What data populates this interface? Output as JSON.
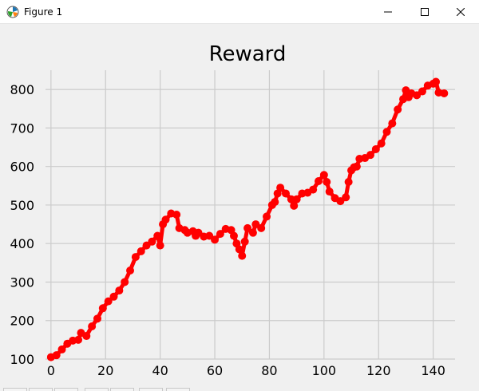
{
  "window": {
    "title": "Figure 1",
    "icons": {
      "app": "matplotlib-icon",
      "minimize": "minimize-icon",
      "maximize": "maximize-icon",
      "close": "close-icon"
    }
  },
  "colors": {
    "line": "#ff0000",
    "grid": "#cbcbcb",
    "background": "#f0f0f0"
  },
  "chart_data": {
    "type": "line",
    "title": "Reward",
    "xlabel": "",
    "ylabel": "",
    "xlim": [
      -2,
      148
    ],
    "ylim": [
      100,
      850
    ],
    "xticks": [
      0,
      20,
      40,
      60,
      80,
      100,
      120,
      140
    ],
    "yticks": [
      100,
      200,
      300,
      400,
      500,
      600,
      700,
      800
    ],
    "grid": true,
    "marker": "circle",
    "series": [
      {
        "values": [
          [
            0,
            105
          ],
          [
            2,
            110
          ],
          [
            4,
            125
          ],
          [
            6,
            140
          ],
          [
            8,
            148
          ],
          [
            10,
            150
          ],
          [
            11,
            168
          ],
          [
            13,
            160
          ],
          [
            15,
            185
          ],
          [
            17,
            205
          ],
          [
            19,
            232
          ],
          [
            21,
            250
          ],
          [
            23,
            262
          ],
          [
            25,
            278
          ],
          [
            27,
            300
          ],
          [
            29,
            330
          ],
          [
            31,
            365
          ],
          [
            33,
            380
          ],
          [
            35,
            395
          ],
          [
            37,
            405
          ],
          [
            39,
            420
          ],
          [
            40,
            395
          ],
          [
            41,
            450
          ],
          [
            42,
            462
          ],
          [
            44,
            478
          ],
          [
            46,
            475
          ],
          [
            47,
            440
          ],
          [
            49,
            435
          ],
          [
            50,
            428
          ],
          [
            52,
            432
          ],
          [
            53,
            420
          ],
          [
            54,
            428
          ],
          [
            56,
            418
          ],
          [
            58,
            420
          ],
          [
            60,
            410
          ],
          [
            62,
            425
          ],
          [
            64,
            438
          ],
          [
            66,
            435
          ],
          [
            67,
            420
          ],
          [
            68,
            400
          ],
          [
            69,
            385
          ],
          [
            70,
            368
          ],
          [
            71,
            405
          ],
          [
            72,
            440
          ],
          [
            74,
            428
          ],
          [
            75,
            450
          ],
          [
            77,
            440
          ],
          [
            79,
            470
          ],
          [
            81,
            500
          ],
          [
            82,
            508
          ],
          [
            83,
            530
          ],
          [
            84,
            545
          ],
          [
            86,
            530
          ],
          [
            88,
            515
          ],
          [
            89,
            498
          ],
          [
            90,
            515
          ],
          [
            92,
            530
          ],
          [
            94,
            532
          ],
          [
            96,
            540
          ],
          [
            98,
            562
          ],
          [
            100,
            578
          ],
          [
            101,
            560
          ],
          [
            102,
            535
          ],
          [
            104,
            518
          ],
          [
            106,
            510
          ],
          [
            108,
            520
          ],
          [
            109,
            560
          ],
          [
            110,
            590
          ],
          [
            111,
            598
          ],
          [
            112,
            600
          ],
          [
            113,
            620
          ],
          [
            115,
            622
          ],
          [
            117,
            630
          ],
          [
            119,
            645
          ],
          [
            121,
            660
          ],
          [
            123,
            690
          ],
          [
            125,
            712
          ],
          [
            127,
            748
          ],
          [
            129,
            775
          ],
          [
            130,
            798
          ],
          [
            131,
            780
          ],
          [
            132,
            790
          ],
          [
            134,
            785
          ],
          [
            136,
            795
          ],
          [
            138,
            810
          ],
          [
            140,
            815
          ],
          [
            141,
            820
          ],
          [
            142,
            792
          ],
          [
            144,
            790
          ]
        ]
      }
    ]
  }
}
